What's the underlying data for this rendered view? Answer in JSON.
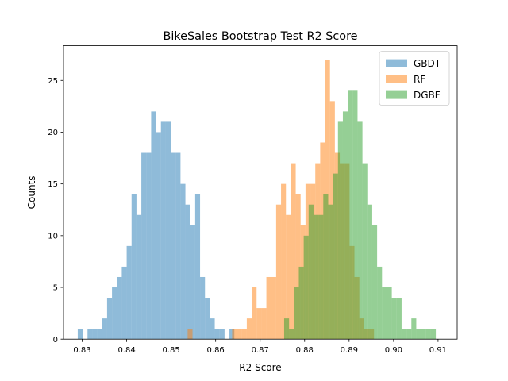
{
  "chart_data": {
    "type": "histogram",
    "title": "BikeSales Bootstrap Test R2 Score",
    "xlabel": "R2 Score",
    "ylabel": "Counts",
    "xlim": [
      0.8258,
      0.9143
    ],
    "ylim": [
      0,
      28.35
    ],
    "xticks": [
      0.83,
      0.84,
      0.85,
      0.86,
      0.87,
      0.88,
      0.89,
      0.9,
      0.91
    ],
    "xtick_labels": [
      "0.83",
      "0.84",
      "0.85",
      "0.86",
      "0.87",
      "0.88",
      "0.89",
      "0.90",
      "0.91"
    ],
    "yticks": [
      0,
      5,
      10,
      15,
      20,
      25
    ],
    "ytick_labels": [
      "0",
      "5",
      "10",
      "15",
      "20",
      "25"
    ],
    "legend_position": "top-right",
    "grid": false,
    "series": [
      {
        "name": "GBDT",
        "color": "#1f77b4",
        "alpha": 0.5,
        "bins": [
          [
            0.829,
            0.8301,
            1
          ],
          [
            0.8301,
            0.8312,
            0
          ],
          [
            0.8312,
            0.8323,
            1
          ],
          [
            0.8323,
            0.8334,
            1
          ],
          [
            0.8334,
            0.8345,
            1
          ],
          [
            0.8345,
            0.8356,
            2
          ],
          [
            0.8356,
            0.8367,
            4
          ],
          [
            0.8367,
            0.8378,
            5
          ],
          [
            0.8378,
            0.8389,
            6
          ],
          [
            0.8389,
            0.84,
            7
          ],
          [
            0.84,
            0.8411,
            9
          ],
          [
            0.8411,
            0.8422,
            14
          ],
          [
            0.8422,
            0.8433,
            12
          ],
          [
            0.8433,
            0.8444,
            18
          ],
          [
            0.8444,
            0.8455,
            18
          ],
          [
            0.8455,
            0.8466,
            22
          ],
          [
            0.8466,
            0.8477,
            20
          ],
          [
            0.8477,
            0.8488,
            21
          ],
          [
            0.8488,
            0.8499,
            21
          ],
          [
            0.8499,
            0.851,
            18
          ],
          [
            0.851,
            0.8521,
            18
          ],
          [
            0.8521,
            0.8532,
            15
          ],
          [
            0.8532,
            0.8543,
            13
          ],
          [
            0.8543,
            0.8554,
            11
          ],
          [
            0.8554,
            0.8565,
            14
          ],
          [
            0.8565,
            0.8576,
            6
          ],
          [
            0.8576,
            0.8587,
            4
          ],
          [
            0.8587,
            0.8598,
            2
          ],
          [
            0.8598,
            0.8609,
            1
          ],
          [
            0.8609,
            0.862,
            1
          ],
          [
            0.8631,
            0.8642,
            1
          ]
        ]
      },
      {
        "name": "RF",
        "color": "#ff7f0e",
        "alpha": 0.5,
        "bins": [
          [
            0.8537,
            0.8548,
            1
          ],
          [
            0.8637,
            0.8648,
            1
          ],
          [
            0.8648,
            0.8659,
            1
          ],
          [
            0.8659,
            0.867,
            1
          ],
          [
            0.867,
            0.8681,
            2
          ],
          [
            0.8681,
            0.8692,
            5
          ],
          [
            0.8692,
            0.8703,
            3
          ],
          [
            0.8703,
            0.8714,
            3
          ],
          [
            0.8714,
            0.8725,
            6
          ],
          [
            0.8725,
            0.8736,
            6
          ],
          [
            0.8736,
            0.8747,
            13
          ],
          [
            0.8747,
            0.8758,
            15
          ],
          [
            0.8758,
            0.8769,
            12
          ],
          [
            0.8769,
            0.878,
            17
          ],
          [
            0.878,
            0.8791,
            14
          ],
          [
            0.8791,
            0.8802,
            11
          ],
          [
            0.8802,
            0.8813,
            15
          ],
          [
            0.8813,
            0.8824,
            15
          ],
          [
            0.8824,
            0.8835,
            17
          ],
          [
            0.8835,
            0.8846,
            19
          ],
          [
            0.8846,
            0.8857,
            27
          ],
          [
            0.8857,
            0.8868,
            23
          ],
          [
            0.8868,
            0.8879,
            18
          ],
          [
            0.8879,
            0.889,
            17
          ],
          [
            0.889,
            0.8901,
            17
          ],
          [
            0.8901,
            0.8912,
            9
          ],
          [
            0.8912,
            0.8923,
            6
          ],
          [
            0.8923,
            0.8934,
            2
          ],
          [
            0.8934,
            0.8945,
            1
          ],
          [
            0.8945,
            0.8956,
            1
          ]
        ]
      },
      {
        "name": "DGBF",
        "color": "#2ca02c",
        "alpha": 0.5,
        "bins": [
          [
            0.8754,
            0.8765,
            2
          ],
          [
            0.8765,
            0.8776,
            1
          ],
          [
            0.8776,
            0.8787,
            5
          ],
          [
            0.8787,
            0.8798,
            7
          ],
          [
            0.8798,
            0.8809,
            10
          ],
          [
            0.8809,
            0.882,
            13
          ],
          [
            0.882,
            0.8831,
            12
          ],
          [
            0.8831,
            0.8842,
            12
          ],
          [
            0.8842,
            0.8853,
            14
          ],
          [
            0.8853,
            0.8864,
            13
          ],
          [
            0.8864,
            0.8875,
            16
          ],
          [
            0.8875,
            0.8886,
            21
          ],
          [
            0.8886,
            0.8897,
            22
          ],
          [
            0.8897,
            0.8908,
            24
          ],
          [
            0.8908,
            0.8919,
            24
          ],
          [
            0.8919,
            0.893,
            21
          ],
          [
            0.893,
            0.8941,
            17
          ],
          [
            0.8941,
            0.8952,
            13
          ],
          [
            0.8952,
            0.8963,
            11
          ],
          [
            0.8963,
            0.8974,
            7
          ],
          [
            0.8974,
            0.8985,
            5
          ],
          [
            0.8985,
            0.8996,
            5
          ],
          [
            0.8996,
            0.9007,
            4
          ],
          [
            0.9007,
            0.9018,
            4
          ],
          [
            0.9018,
            0.9029,
            1
          ],
          [
            0.9029,
            0.904,
            1
          ],
          [
            0.904,
            0.9051,
            2
          ],
          [
            0.9051,
            0.9062,
            1
          ],
          [
            0.9062,
            0.9073,
            1
          ],
          [
            0.9073,
            0.9084,
            1
          ],
          [
            0.9084,
            0.9095,
            1
          ]
        ]
      }
    ]
  }
}
